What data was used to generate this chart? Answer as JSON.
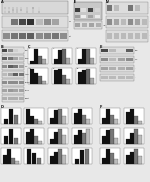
{
  "bg": "#e8e8e8",
  "white": "#ffffff",
  "black": "#000000",
  "dark_gray": "#222222",
  "mid_gray": "#888888",
  "light_gray": "#cccccc"
}
